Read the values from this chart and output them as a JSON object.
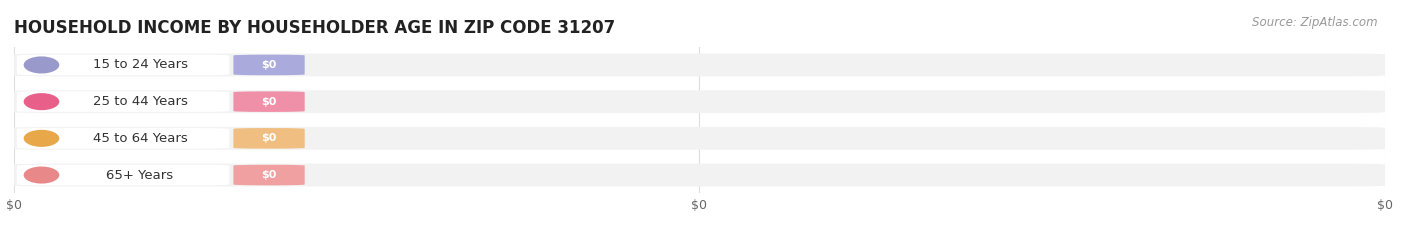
{
  "title": "HOUSEHOLD INCOME BY HOUSEHOLDER AGE IN ZIP CODE 31207",
  "source": "Source: ZipAtlas.com",
  "categories": [
    "15 to 24 Years",
    "25 to 44 Years",
    "45 to 64 Years",
    "65+ Years"
  ],
  "values": [
    0,
    0,
    0,
    0
  ],
  "circle_colors": [
    "#9999cc",
    "#e8608a",
    "#e8a84a",
    "#e88888"
  ],
  "value_pill_colors": [
    "#aaaadd",
    "#f090a8",
    "#f0be80",
    "#f0a0a0"
  ],
  "bar_bg_color": "#f2f2f2",
  "label_bg_color": "#ffffff",
  "title_fontsize": 12,
  "source_fontsize": 8.5,
  "tick_label_fontsize": 9,
  "bar_label_fontsize": 8,
  "category_fontsize": 9.5,
  "bg_color": "#ffffff",
  "ylabel_color": "#666666",
  "source_color": "#999999",
  "grid_color": "#dddddd",
  "xticks": [
    0,
    0.5,
    1.0
  ],
  "xtick_labels": [
    "$0",
    "$0",
    "$0"
  ]
}
